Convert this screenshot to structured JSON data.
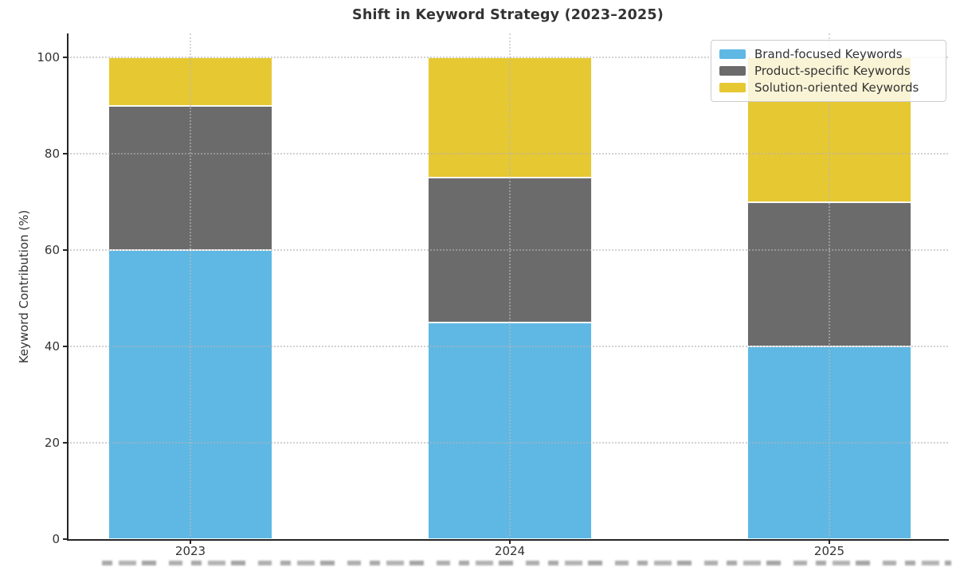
{
  "chart_data": {
    "type": "bar",
    "stacked": true,
    "title": "Shift in Keyword Strategy (2023–2025)",
    "xlabel": "",
    "ylabel": "Keyword Contribution (%)",
    "categories": [
      "2023",
      "2024",
      "2025"
    ],
    "series": [
      {
        "name": "Brand-focused Keywords",
        "color": "#5FB8E4",
        "values": [
          60,
          45,
          40
        ]
      },
      {
        "name": "Product-specific Keywords",
        "color": "#6B6B6B",
        "values": [
          30,
          30,
          30
        ]
      },
      {
        "name": "Solution-oriented Keywords",
        "color": "#E6C832",
        "values": [
          10,
          25,
          30
        ]
      }
    ],
    "ylim": [
      0,
      105
    ],
    "yticks": [
      0,
      20,
      40,
      60,
      80,
      100
    ],
    "grid": true,
    "grid_style": "dotted",
    "bar_edge_color": "#ffffff",
    "legend_position": "upper right",
    "legend_labels": [
      "Brand-focused Keywords",
      "Product-specific Keywords",
      "Solution-oriented Keywords"
    ]
  }
}
